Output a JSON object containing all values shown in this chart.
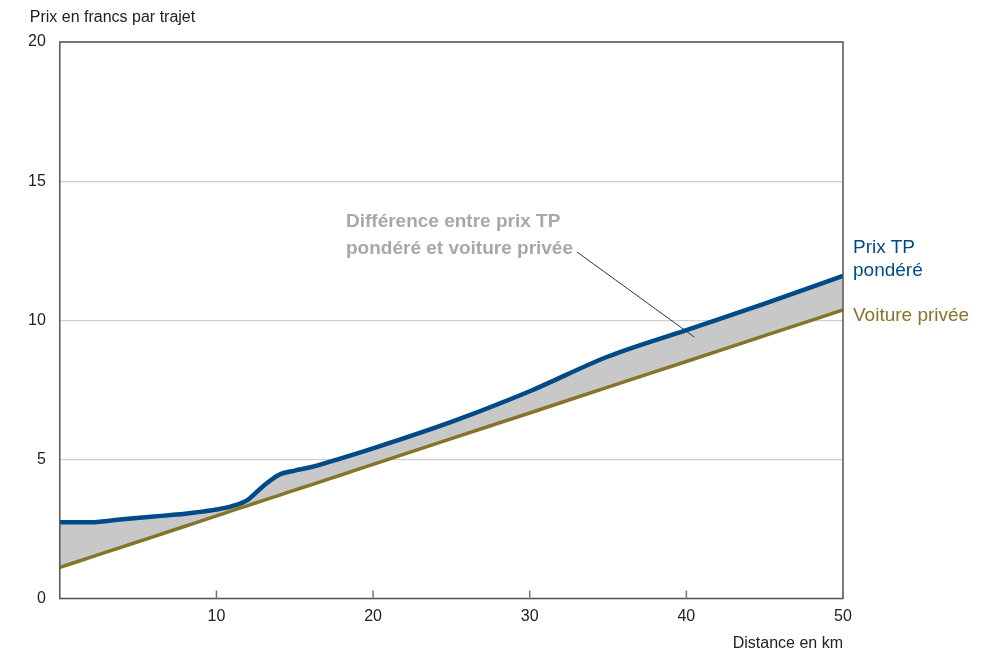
{
  "chart_data": {
    "type": "line",
    "xlabel": "Distance en km",
    "ylabel": "Prix en francs par trajet",
    "x": [
      0,
      2,
      4,
      6,
      8,
      10,
      11,
      12,
      13,
      14,
      15,
      16,
      18,
      20,
      25,
      30,
      35,
      40,
      45,
      50
    ],
    "series": [
      {
        "name": "Prix TP pondéré",
        "color": "#004a87",
        "values": [
          2.74,
          2.74,
          2.85,
          2.95,
          3.05,
          3.2,
          3.32,
          3.55,
          4.05,
          4.45,
          4.6,
          4.72,
          5.05,
          5.4,
          6.35,
          7.45,
          8.7,
          9.65,
          10.6,
          11.6
        ],
        "lower": [
          1.12,
          1.49,
          1.86,
          2.23,
          2.6,
          2.97,
          3.16,
          3.34,
          3.53,
          3.71,
          3.9,
          4.08,
          4.45,
          4.82,
          5.75,
          6.67,
          7.6,
          8.52,
          9.45,
          10.37
        ],
        "upper": [
          2.74,
          2.74,
          2.85,
          2.95,
          3.05,
          3.2,
          3.32,
          3.55,
          4.05,
          4.45,
          4.6,
          4.72,
          5.05,
          5.4,
          6.35,
          7.45,
          8.7,
          9.65,
          10.6,
          11.6
        ]
      },
      {
        "name": "Voiture privée",
        "color": "#857429",
        "values": [
          1.12,
          1.49,
          1.86,
          2.23,
          2.6,
          2.97,
          3.16,
          3.34,
          3.53,
          3.71,
          3.9,
          4.08,
          4.45,
          4.82,
          5.75,
          6.67,
          7.6,
          8.52,
          9.45,
          10.37
        ]
      }
    ],
    "annotations": [
      "Différence entre prix TP pondéré et voiture privée"
    ],
    "xlim": [
      0,
      50
    ],
    "xticks": [
      10,
      20,
      30,
      40,
      50
    ],
    "ylim": [
      0,
      20
    ],
    "yticks": [
      0,
      5,
      10,
      15,
      20
    ],
    "grid": "y",
    "legend": false,
    "marker": "none",
    "line_style": "solid"
  }
}
